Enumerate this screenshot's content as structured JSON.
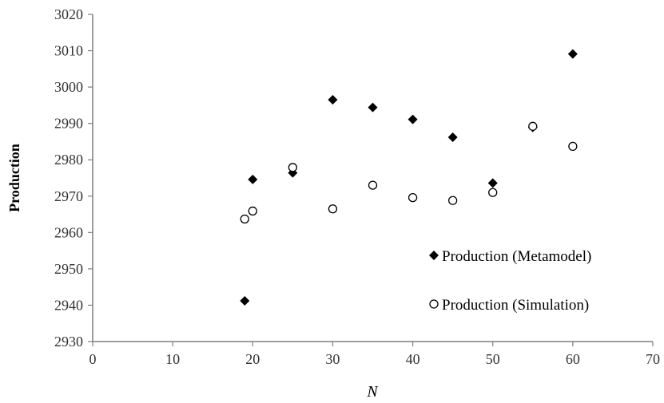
{
  "chart_data": {
    "type": "scatter",
    "title": "",
    "xlabel": "N",
    "ylabel": "Production",
    "xlim": [
      0,
      70
    ],
    "ylim": [
      2930,
      3020
    ],
    "x_ticks": [
      0,
      10,
      20,
      30,
      40,
      50,
      60,
      70
    ],
    "y_ticks": [
      2930,
      2940,
      2950,
      2960,
      2970,
      2980,
      2990,
      3000,
      3010,
      3020
    ],
    "grid": false,
    "legend_position": "bottom-right",
    "series": [
      {
        "name": "Production (Metamodel)",
        "marker": "filled-diamond",
        "color": "#000000",
        "x": [
          19,
          20,
          25,
          30,
          35,
          40,
          45,
          50,
          55,
          60
        ],
        "y": [
          2941.2,
          2974.6,
          2976.4,
          2996.5,
          2994.4,
          2991.1,
          2986.2,
          2973.6,
          2988.9,
          3009.1
        ]
      },
      {
        "name": "Production (Simulation)",
        "marker": "open-circle",
        "color": "#000000",
        "x": [
          19,
          20,
          25,
          30,
          35,
          40,
          45,
          50,
          55,
          60
        ],
        "y": [
          2963.7,
          2965.9,
          2977.9,
          2966.5,
          2973.0,
          2969.6,
          2968.8,
          2971.0,
          2989.2,
          2983.7
        ]
      }
    ]
  }
}
